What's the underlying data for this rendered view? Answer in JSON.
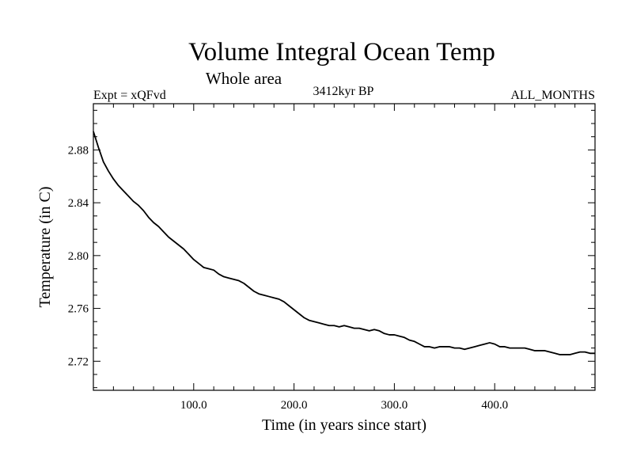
{
  "chart_data": {
    "type": "line",
    "title": "Volume Integral Ocean Temp",
    "subtitle": "Whole area",
    "experiment_label": "Expt = xQFvd",
    "period_label": "3412kyr BP",
    "months_label": "ALL_MONTHS",
    "xlabel": "Time (in years since start)",
    "ylabel": "Temperature (in C)",
    "xlim": [
      0,
      500
    ],
    "ylim": [
      2.698,
      2.915
    ],
    "x_ticks": [
      100,
      200,
      300,
      400
    ],
    "x_tick_labels": [
      "100.0",
      "200.0",
      "300.0",
      "400.0"
    ],
    "y_ticks": [
      2.72,
      2.76,
      2.8,
      2.84,
      2.88
    ],
    "y_tick_labels": [
      "2.72",
      "2.76",
      "2.80",
      "2.84",
      "2.88"
    ],
    "grid": false,
    "series": [
      {
        "name": "Volume integral ocean temperature",
        "x": [
          0,
          5,
          10,
          15,
          20,
          25,
          30,
          35,
          40,
          45,
          50,
          55,
          60,
          65,
          70,
          75,
          80,
          85,
          90,
          95,
          100,
          105,
          110,
          115,
          120,
          125,
          130,
          135,
          140,
          145,
          150,
          155,
          160,
          165,
          170,
          175,
          180,
          185,
          190,
          195,
          200,
          205,
          210,
          215,
          220,
          225,
          230,
          235,
          240,
          245,
          250,
          255,
          260,
          265,
          270,
          275,
          280,
          285,
          290,
          295,
          300,
          305,
          310,
          315,
          320,
          325,
          330,
          335,
          340,
          345,
          350,
          355,
          360,
          365,
          370,
          375,
          380,
          385,
          390,
          395,
          400,
          405,
          410,
          415,
          420,
          425,
          430,
          435,
          440,
          445,
          450,
          455,
          460,
          465,
          470,
          475,
          480,
          485,
          490,
          495,
          500
        ],
        "values": [
          2.894,
          2.882,
          2.871,
          2.864,
          2.858,
          2.853,
          2.849,
          2.845,
          2.841,
          2.838,
          2.834,
          2.829,
          2.825,
          2.822,
          2.818,
          2.814,
          2.811,
          2.808,
          2.805,
          2.801,
          2.797,
          2.794,
          2.791,
          2.79,
          2.789,
          2.786,
          2.784,
          2.783,
          2.782,
          2.781,
          2.779,
          2.776,
          2.773,
          2.771,
          2.77,
          2.769,
          2.768,
          2.767,
          2.765,
          2.762,
          2.759,
          2.756,
          2.753,
          2.751,
          2.75,
          2.749,
          2.748,
          2.747,
          2.747,
          2.746,
          2.747,
          2.746,
          2.745,
          2.745,
          2.744,
          2.743,
          2.744,
          2.743,
          2.741,
          2.74,
          2.74,
          2.739,
          2.738,
          2.736,
          2.735,
          2.733,
          2.731,
          2.731,
          2.73,
          2.731,
          2.731,
          2.731,
          2.73,
          2.73,
          2.729,
          2.73,
          2.731,
          2.732,
          2.733,
          2.734,
          2.733,
          2.731,
          2.731,
          2.73,
          2.73,
          2.73,
          2.73,
          2.729,
          2.728,
          2.728,
          2.728,
          2.727,
          2.726,
          2.725,
          2.725,
          2.725,
          2.726,
          2.727,
          2.727,
          2.726,
          2.726
        ]
      }
    ]
  }
}
